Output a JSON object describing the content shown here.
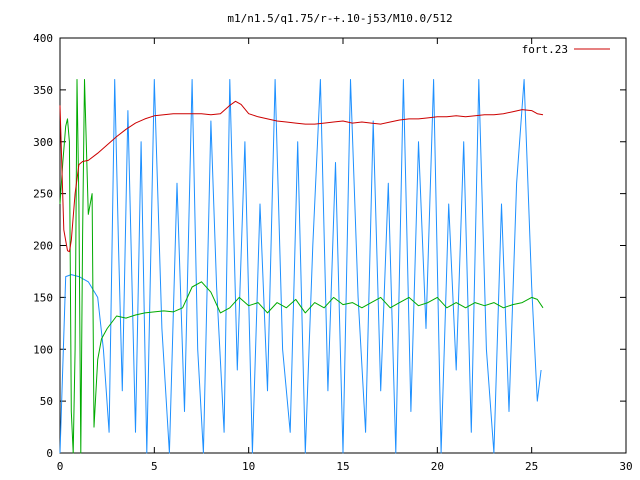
{
  "chart_data": {
    "type": "line",
    "title": "m1/n1.5/q1.75/r-+.10-j53/M10.0/512",
    "xlabel": "",
    "ylabel": "",
    "xlim": [
      0,
      30
    ],
    "ylim": [
      0,
      400
    ],
    "xticks": [
      "0",
      "5",
      "10",
      "15",
      "20",
      "25",
      "30"
    ],
    "yticks": [
      "0",
      "50",
      "100",
      "150",
      "200",
      "250",
      "300",
      "350",
      "400"
    ],
    "grid": false,
    "legend_position": "top-right",
    "series": [
      {
        "name": "fort.23",
        "color": "#cc0000",
        "x": [
          0,
          0.2,
          0.4,
          0.5,
          0.6,
          0.8,
          1.0,
          1.2,
          1.5,
          2.0,
          2.5,
          3.0,
          3.5,
          4.0,
          4.5,
          5.0,
          5.5,
          6.0,
          6.5,
          7.0,
          7.5,
          8.0,
          8.5,
          9.0,
          9.3,
          9.6,
          10.0,
          10.5,
          11.0,
          11.5,
          12.0,
          12.5,
          13.0,
          13.5,
          14.0,
          14.5,
          15.0,
          15.5,
          16.0,
          16.5,
          17.0,
          17.5,
          18.0,
          18.5,
          19.0,
          19.5,
          20.0,
          20.5,
          21.0,
          21.5,
          22.0,
          22.5,
          23.0,
          23.5,
          24.0,
          24.5,
          25.0,
          25.3,
          25.6
        ],
        "y": [
          335,
          215,
          195,
          194,
          205,
          250,
          278,
          281,
          282,
          289,
          297,
          305,
          312,
          318,
          322,
          325,
          326,
          327,
          327,
          327,
          327,
          326,
          327,
          335,
          339,
          336,
          327,
          324,
          322,
          320,
          319,
          318,
          317,
          317,
          318,
          319,
          320,
          318,
          319,
          318,
          317,
          319,
          321,
          322,
          322,
          323,
          324,
          324,
          325,
          324,
          325,
          326,
          326,
          327,
          329,
          331,
          330,
          327,
          326
        ]
      },
      {
        "name": "",
        "color": "#00aa00",
        "x": [
          0,
          0.15,
          0.3,
          0.4,
          0.5,
          0.6,
          0.7,
          0.8,
          0.9,
          1.0,
          1.1,
          1.2,
          1.3,
          1.5,
          1.7,
          1.8,
          2.0,
          2.2,
          2.5,
          3.0,
          3.5,
          4.0,
          4.5,
          5.0,
          5.5,
          6.0,
          6.5,
          7.0,
          7.5,
          8.0,
          8.5,
          9.0,
          9.5,
          10.0,
          10.5,
          11.0,
          11.5,
          12.0,
          12.5,
          13.0,
          13.5,
          14.0,
          14.5,
          15.0,
          15.5,
          16.0,
          16.5,
          17.0,
          17.5,
          18.0,
          18.5,
          19.0,
          19.5,
          20.0,
          20.5,
          21.0,
          21.5,
          22.0,
          22.5,
          23.0,
          23.5,
          24.0,
          24.5,
          25.0,
          25.3,
          25.6
        ],
        "y": [
          240,
          280,
          315,
          322,
          300,
          40,
          0,
          100,
          360,
          240,
          0,
          210,
          360,
          230,
          250,
          25,
          90,
          110,
          120,
          132,
          130,
          133,
          135,
          136,
          137,
          136,
          140,
          160,
          165,
          155,
          135,
          140,
          150,
          142,
          145,
          135,
          145,
          140,
          148,
          135,
          145,
          140,
          150,
          143,
          145,
          140,
          145,
          150,
          140,
          145,
          150,
          142,
          145,
          150,
          140,
          145,
          140,
          145,
          142,
          145,
          140,
          143,
          145,
          150,
          148,
          140
        ]
      },
      {
        "name": "",
        "color": "#1e90ff",
        "x": [
          0,
          0.3,
          0.6,
          1.0,
          1.5,
          2.0,
          2.3,
          2.6,
          2.9,
          3.1,
          3.3,
          3.6,
          4.0,
          4.3,
          4.6,
          5.0,
          5.4,
          5.8,
          6.2,
          6.6,
          7.0,
          7.3,
          7.6,
          8.0,
          8.3,
          8.7,
          9.0,
          9.4,
          9.8,
          10.2,
          10.6,
          11.0,
          11.4,
          11.8,
          12.2,
          12.6,
          13.0,
          13.4,
          13.8,
          14.2,
          14.6,
          15.0,
          15.4,
          15.8,
          16.2,
          16.6,
          17.0,
          17.4,
          17.8,
          18.2,
          18.6,
          19.0,
          19.4,
          19.8,
          20.2,
          20.6,
          21.0,
          21.4,
          21.8,
          22.2,
          22.6,
          23.0,
          23.4,
          23.8,
          24.2,
          24.6,
          25.0,
          25.3,
          25.5
        ],
        "y": [
          0,
          170,
          172,
          170,
          165,
          150,
          100,
          20,
          360,
          200,
          60,
          330,
          20,
          300,
          0,
          360,
          120,
          0,
          260,
          40,
          360,
          100,
          0,
          320,
          160,
          20,
          360,
          80,
          300,
          0,
          240,
          60,
          360,
          100,
          20,
          300,
          0,
          200,
          360,
          60,
          280,
          0,
          360,
          150,
          20,
          320,
          60,
          260,
          0,
          360,
          40,
          300,
          120,
          360,
          0,
          240,
          80,
          300,
          20,
          360,
          100,
          0,
          240,
          40,
          260,
          360,
          160,
          50,
          80
        ]
      }
    ]
  }
}
